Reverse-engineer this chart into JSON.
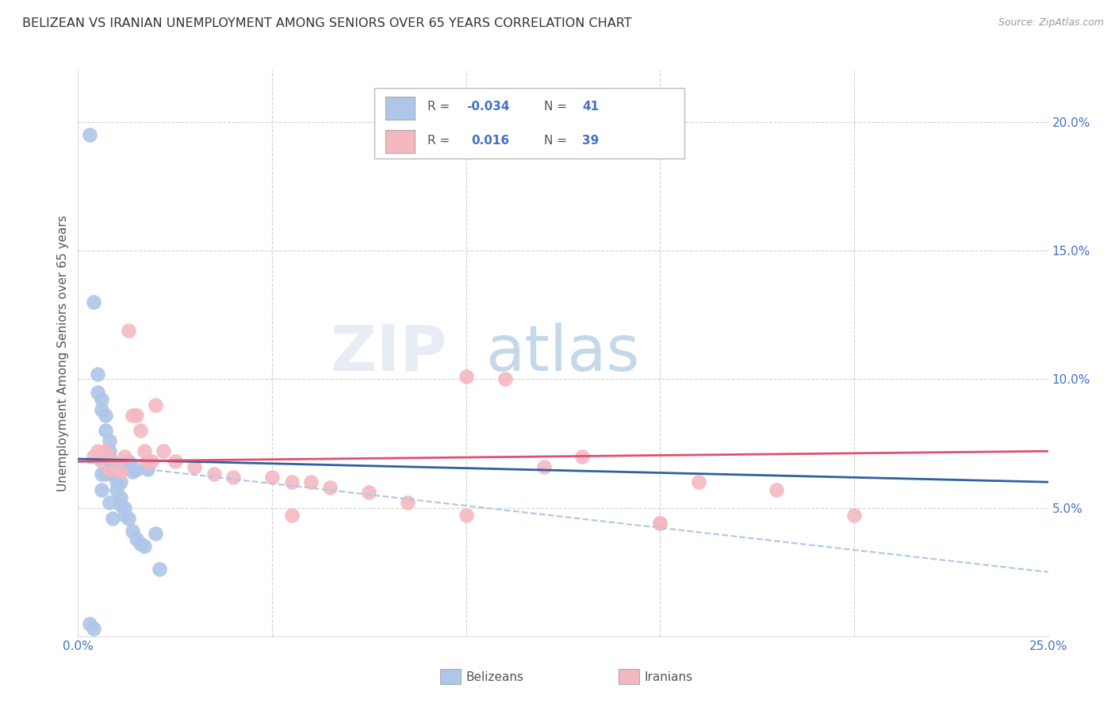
{
  "title": "BELIZEAN VS IRANIAN UNEMPLOYMENT AMONG SENIORS OVER 65 YEARS CORRELATION CHART",
  "source": "Source: ZipAtlas.com",
  "ylabel": "Unemployment Among Seniors over 65 years",
  "xlim": [
    0.0,
    0.25
  ],
  "ylim": [
    0.0,
    0.22
  ],
  "xticks": [
    0.0,
    0.05,
    0.1,
    0.15,
    0.2,
    0.25
  ],
  "yticks": [
    0.05,
    0.1,
    0.15,
    0.2
  ],
  "belizean_R": -0.034,
  "belizean_N": 41,
  "iranian_R": 0.016,
  "iranian_N": 39,
  "belizean_color": "#aec6e8",
  "iranian_color": "#f4b8c1",
  "belizean_line_color": "#3060a0",
  "iranian_line_color": "#e05070",
  "dashed_line_color": "#aec6e8",
  "background_color": "#ffffff",
  "grid_color": "#cccccc",
  "belizean_x": [
    0.003,
    0.004,
    0.005,
    0.005,
    0.006,
    0.006,
    0.007,
    0.007,
    0.008,
    0.008,
    0.008,
    0.009,
    0.009,
    0.01,
    0.01,
    0.01,
    0.011,
    0.011,
    0.012,
    0.012,
    0.013,
    0.013,
    0.014,
    0.014,
    0.015,
    0.015,
    0.016,
    0.017,
    0.018,
    0.02,
    0.021,
    0.003,
    0.006,
    0.007,
    0.008,
    0.009,
    0.01,
    0.011,
    0.013,
    0.004,
    0.006
  ],
  "belizean_y": [
    0.195,
    0.13,
    0.102,
    0.095,
    0.092,
    0.088,
    0.086,
    0.08,
    0.076,
    0.072,
    0.068,
    0.066,
    0.063,
    0.063,
    0.06,
    0.057,
    0.054,
    0.051,
    0.05,
    0.047,
    0.046,
    0.066,
    0.064,
    0.041,
    0.065,
    0.038,
    0.036,
    0.035,
    0.065,
    0.04,
    0.026,
    0.005,
    0.063,
    0.063,
    0.052,
    0.046,
    0.066,
    0.06,
    0.068,
    0.003,
    0.057
  ],
  "iranian_x": [
    0.004,
    0.005,
    0.006,
    0.007,
    0.008,
    0.009,
    0.01,
    0.011,
    0.012,
    0.013,
    0.014,
    0.015,
    0.016,
    0.017,
    0.018,
    0.019,
    0.02,
    0.022,
    0.025,
    0.03,
    0.035,
    0.04,
    0.05,
    0.055,
    0.06,
    0.065,
    0.075,
    0.085,
    0.1,
    0.11,
    0.12,
    0.13,
    0.15,
    0.16,
    0.18,
    0.2,
    0.055,
    0.1,
    0.15
  ],
  "iranian_y": [
    0.07,
    0.072,
    0.068,
    0.072,
    0.065,
    0.068,
    0.066,
    0.064,
    0.07,
    0.119,
    0.086,
    0.086,
    0.08,
    0.072,
    0.068,
    0.068,
    0.09,
    0.072,
    0.068,
    0.066,
    0.063,
    0.062,
    0.062,
    0.06,
    0.06,
    0.058,
    0.056,
    0.052,
    0.101,
    0.1,
    0.066,
    0.07,
    0.044,
    0.06,
    0.057,
    0.047,
    0.047,
    0.047,
    0.044
  ]
}
